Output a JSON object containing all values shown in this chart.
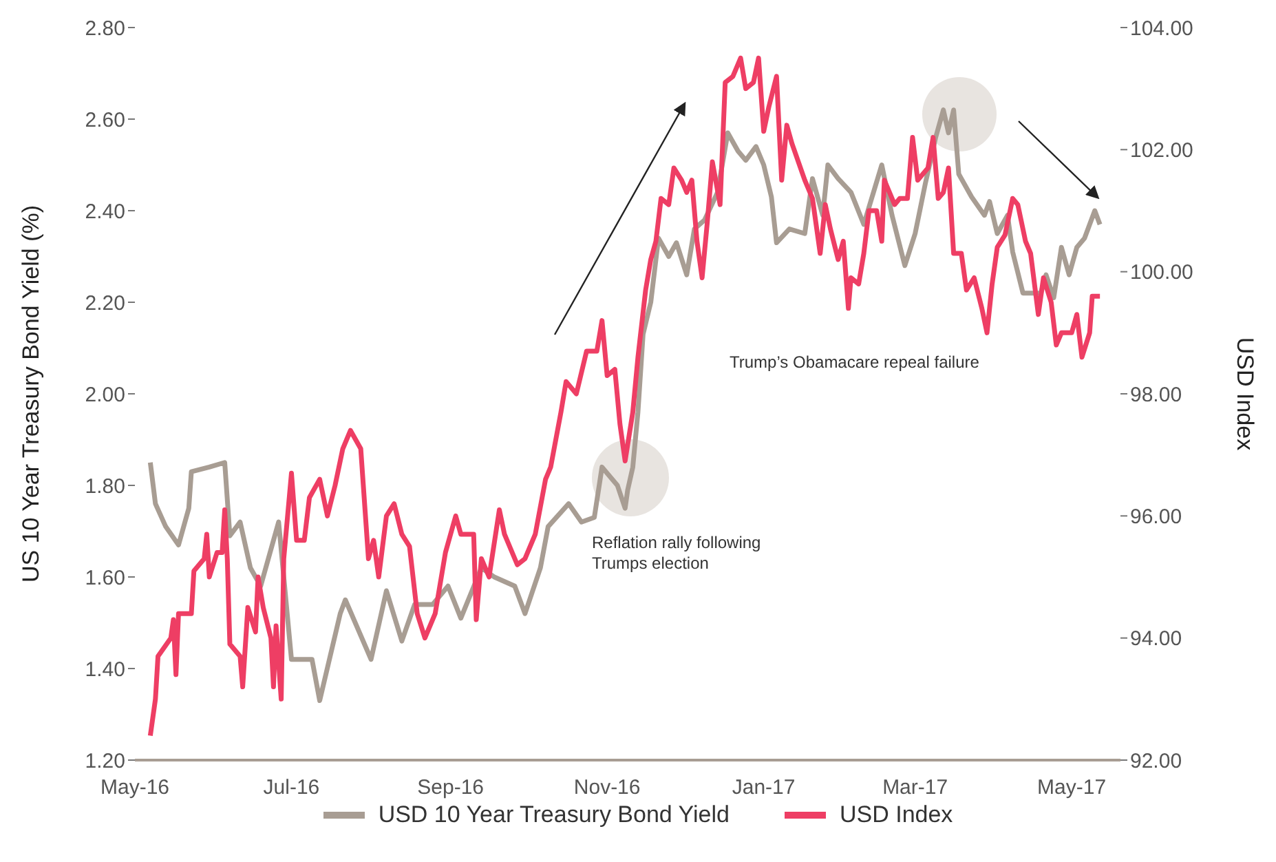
{
  "chart_data": {
    "type": "line",
    "ylabel": "US 10 Year Treasury Bond Yield (%)",
    "y2label": "USD Index",
    "xlim": [
      "2016-05-01",
      "2017-05-20"
    ],
    "xticks": [
      {
        "value": "2016-05-01",
        "label": "May-16"
      },
      {
        "value": "2016-07-01",
        "label": "Jul-16"
      },
      {
        "value": "2016-09-01",
        "label": "Sep-16"
      },
      {
        "value": "2016-11-01",
        "label": "Nov-16"
      },
      {
        "value": "2017-01-01",
        "label": "Jan-17"
      },
      {
        "value": "2017-03-01",
        "label": "Mar-17"
      },
      {
        "value": "2017-05-01",
        "label": "May-17"
      }
    ],
    "ylim": [
      1.2,
      2.8
    ],
    "yticks": [
      {
        "value": 1.2,
        "label": "1.20"
      },
      {
        "value": 1.4,
        "label": "1.40"
      },
      {
        "value": 1.6,
        "label": "1.60"
      },
      {
        "value": 1.8,
        "label": "1.80"
      },
      {
        "value": 2.0,
        "label": "2.00"
      },
      {
        "value": 2.2,
        "label": "2.20"
      },
      {
        "value": 2.4,
        "label": "2.40"
      },
      {
        "value": 2.6,
        "label": "2.60"
      },
      {
        "value": 2.8,
        "label": "2.80"
      }
    ],
    "y2lim": [
      92,
      104
    ],
    "y2ticks": [
      {
        "value": 92,
        "label": "92.00"
      },
      {
        "value": 94,
        "label": "94.00"
      },
      {
        "value": 96,
        "label": "96.00"
      },
      {
        "value": 98,
        "label": "98.00"
      },
      {
        "value": 100,
        "label": "100.00"
      },
      {
        "value": 102,
        "label": "102.00"
      },
      {
        "value": 104,
        "label": "104.00"
      }
    ],
    "legend": "bottom",
    "series": [
      {
        "name": "USD 10 Year Treasury Bond Yield",
        "color": "#a89d93",
        "x": [
          "2016-05-07",
          "2016-05-09",
          "2016-05-13",
          "2016-05-18",
          "2016-05-22",
          "2016-05-23",
          "2016-05-30",
          "2016-06-05",
          "2016-06-07",
          "2016-06-11",
          "2016-06-15",
          "2016-06-19",
          "2016-06-26",
          "2016-07-01",
          "2016-07-09",
          "2016-07-12",
          "2016-07-20",
          "2016-07-22",
          "2016-08-01",
          "2016-08-07",
          "2016-08-13",
          "2016-08-18",
          "2016-08-25",
          "2016-08-31",
          "2016-09-05",
          "2016-09-13",
          "2016-09-18",
          "2016-09-26",
          "2016-09-30",
          "2016-10-06",
          "2016-10-09",
          "2016-10-17",
          "2016-10-22",
          "2016-10-27",
          "2016-10-30",
          "2016-11-05",
          "2016-11-08",
          "2016-11-09",
          "2016-11-11",
          "2016-11-13",
          "2016-11-15",
          "2016-11-18",
          "2016-11-21",
          "2016-11-25",
          "2016-11-28",
          "2016-12-02",
          "2016-12-05",
          "2016-12-09",
          "2016-12-14",
          "2016-12-18",
          "2016-12-22",
          "2016-12-25",
          "2016-12-29",
          "2017-01-01",
          "2017-01-04",
          "2017-01-06",
          "2017-01-11",
          "2017-01-17",
          "2017-01-20",
          "2017-01-24",
          "2017-01-26",
          "2017-01-30",
          "2017-02-04",
          "2017-02-09",
          "2017-02-16",
          "2017-02-20",
          "2017-02-25",
          "2017-03-01",
          "2017-03-05",
          "2017-03-09",
          "2017-03-12",
          "2017-03-14",
          "2017-03-16",
          "2017-03-18",
          "2017-03-23",
          "2017-03-28",
          "2017-03-30",
          "2017-04-02",
          "2017-04-06",
          "2017-04-08",
          "2017-04-12",
          "2017-04-19",
          "2017-04-21",
          "2017-04-24",
          "2017-04-27",
          "2017-04-30",
          "2017-05-03",
          "2017-05-06",
          "2017-05-10",
          "2017-05-12"
        ],
        "values": [
          1.85,
          1.76,
          1.71,
          1.67,
          1.75,
          1.83,
          1.84,
          1.85,
          1.69,
          1.72,
          1.62,
          1.58,
          1.72,
          1.42,
          1.42,
          1.33,
          1.52,
          1.55,
          1.42,
          1.57,
          1.46,
          1.54,
          1.54,
          1.58,
          1.51,
          1.62,
          1.6,
          1.58,
          1.52,
          1.62,
          1.71,
          1.76,
          1.72,
          1.73,
          1.84,
          1.8,
          1.75,
          1.79,
          1.84,
          1.96,
          2.13,
          2.2,
          2.34,
          2.3,
          2.33,
          2.26,
          2.36,
          2.38,
          2.44,
          2.57,
          2.53,
          2.51,
          2.54,
          2.5,
          2.43,
          2.33,
          2.36,
          2.35,
          2.47,
          2.39,
          2.5,
          2.47,
          2.44,
          2.37,
          2.5,
          2.39,
          2.28,
          2.35,
          2.46,
          2.56,
          2.62,
          2.57,
          2.62,
          2.48,
          2.43,
          2.39,
          2.42,
          2.35,
          2.39,
          2.31,
          2.22,
          2.22,
          2.26,
          2.21,
          2.32,
          2.26,
          2.32,
          2.34,
          2.4,
          2.37
        ]
      },
      {
        "name": "USD Index",
        "color": "#ee3e64",
        "axis": "y2",
        "x": [
          "2016-05-07",
          "2016-05-09",
          "2016-05-10",
          "2016-05-15",
          "2016-05-16",
          "2016-05-17",
          "2016-05-18",
          "2016-05-23",
          "2016-05-24",
          "2016-05-28",
          "2016-05-29",
          "2016-05-30",
          "2016-06-02",
          "2016-06-04",
          "2016-06-05",
          "2016-06-06",
          "2016-06-07",
          "2016-06-11",
          "2016-06-12",
          "2016-06-14",
          "2016-06-17",
          "2016-06-18",
          "2016-06-20",
          "2016-06-23",
          "2016-06-24",
          "2016-06-25",
          "2016-06-27",
          "2016-06-28",
          "2016-07-01",
          "2016-07-03",
          "2016-07-06",
          "2016-07-08",
          "2016-07-12",
          "2016-07-15",
          "2016-07-18",
          "2016-07-21",
          "2016-07-24",
          "2016-07-28",
          "2016-07-31",
          "2016-08-02",
          "2016-08-04",
          "2016-08-07",
          "2016-08-10",
          "2016-08-13",
          "2016-08-16",
          "2016-08-19",
          "2016-08-22",
          "2016-08-26",
          "2016-08-30",
          "2016-09-03",
          "2016-09-05",
          "2016-09-10",
          "2016-09-11",
          "2016-09-13",
          "2016-09-16",
          "2016-09-20",
          "2016-09-22",
          "2016-09-27",
          "2016-09-30",
          "2016-10-04",
          "2016-10-08",
          "2016-10-10",
          "2016-10-14",
          "2016-10-16",
          "2016-10-20",
          "2016-10-24",
          "2016-10-28",
          "2016-10-30",
          "2016-11-01",
          "2016-11-04",
          "2016-11-06",
          "2016-11-08",
          "2016-11-11",
          "2016-11-13",
          "2016-11-16",
          "2016-11-18",
          "2016-11-20",
          "2016-11-22",
          "2016-11-25",
          "2016-11-27",
          "2016-11-30",
          "2016-12-02",
          "2016-12-04",
          "2016-12-06",
          "2016-12-08",
          "2016-12-10",
          "2016-12-12",
          "2016-12-15",
          "2016-12-17",
          "2016-12-20",
          "2016-12-23",
          "2016-12-25",
          "2016-12-28",
          "2016-12-30",
          "2017-01-01",
          "2017-01-03",
          "2017-01-06",
          "2017-01-08",
          "2017-01-10",
          "2017-01-12",
          "2017-01-17",
          "2017-01-20",
          "2017-01-23",
          "2017-01-25",
          "2017-01-27",
          "2017-01-30",
          "2017-02-01",
          "2017-02-03",
          "2017-02-04",
          "2017-02-07",
          "2017-02-09",
          "2017-02-11",
          "2017-02-14",
          "2017-02-16",
          "2017-02-17",
          "2017-02-21",
          "2017-02-23",
          "2017-02-26",
          "2017-02-28",
          "2017-03-02",
          "2017-03-06",
          "2017-03-08",
          "2017-03-10",
          "2017-03-12",
          "2017-03-14",
          "2017-03-16",
          "2017-03-19",
          "2017-03-21",
          "2017-03-24",
          "2017-03-27",
          "2017-03-29",
          "2017-03-31",
          "2017-04-02",
          "2017-04-05",
          "2017-04-08",
          "2017-04-10",
          "2017-04-13",
          "2017-04-15",
          "2017-04-18",
          "2017-04-20",
          "2017-04-23",
          "2017-04-25",
          "2017-04-27",
          "2017-05-01",
          "2017-05-03",
          "2017-05-05",
          "2017-05-08",
          "2017-05-09",
          "2017-05-12"
        ],
        "values": [
          92.4,
          93.0,
          93.7,
          94.0,
          94.3,
          93.4,
          94.4,
          94.4,
          95.1,
          95.3,
          95.7,
          95.0,
          95.4,
          95.4,
          96.1,
          95.3,
          93.9,
          93.7,
          93.2,
          94.5,
          94.1,
          95.0,
          94.5,
          94.0,
          93.2,
          94.2,
          93.0,
          95.3,
          96.7,
          95.6,
          95.6,
          96.3,
          96.6,
          96.0,
          96.5,
          97.1,
          97.4,
          97.1,
          95.3,
          95.6,
          95.0,
          96.0,
          96.2,
          95.7,
          95.5,
          94.4,
          94.0,
          94.4,
          95.4,
          96.0,
          95.7,
          95.7,
          94.3,
          95.3,
          95.0,
          96.1,
          95.7,
          95.2,
          95.3,
          95.7,
          96.6,
          96.8,
          97.7,
          98.2,
          98.0,
          98.7,
          98.7,
          99.2,
          98.3,
          98.4,
          97.5,
          96.9,
          97.7,
          98.6,
          99.7,
          100.2,
          100.5,
          101.2,
          101.1,
          101.7,
          101.5,
          101.3,
          101.5,
          100.5,
          99.9,
          100.8,
          101.8,
          101.1,
          103.1,
          103.2,
          103.5,
          103.0,
          103.1,
          103.5,
          102.3,
          102.7,
          103.2,
          101.5,
          102.4,
          102.1,
          101.5,
          101.2,
          100.3,
          101.1,
          100.7,
          100.2,
          100.5,
          99.4,
          99.9,
          99.8,
          100.3,
          101.0,
          101.0,
          100.5,
          101.5,
          101.1,
          101.2,
          101.2,
          102.2,
          101.5,
          101.7,
          102.2,
          101.2,
          101.3,
          101.7,
          100.3,
          100.3,
          99.7,
          99.9,
          99.4,
          99.0,
          99.8,
          100.4,
          100.6,
          101.2,
          101.1,
          100.5,
          100.3,
          99.3,
          99.9,
          99.5,
          98.8,
          99.0,
          99.0,
          99.3,
          98.6,
          99.0,
          99.6,
          99.6
        ]
      }
    ],
    "annotations": [
      "Reflation rally following Trumps election",
      "Trump’s Obamacare repeal failure"
    ]
  }
}
